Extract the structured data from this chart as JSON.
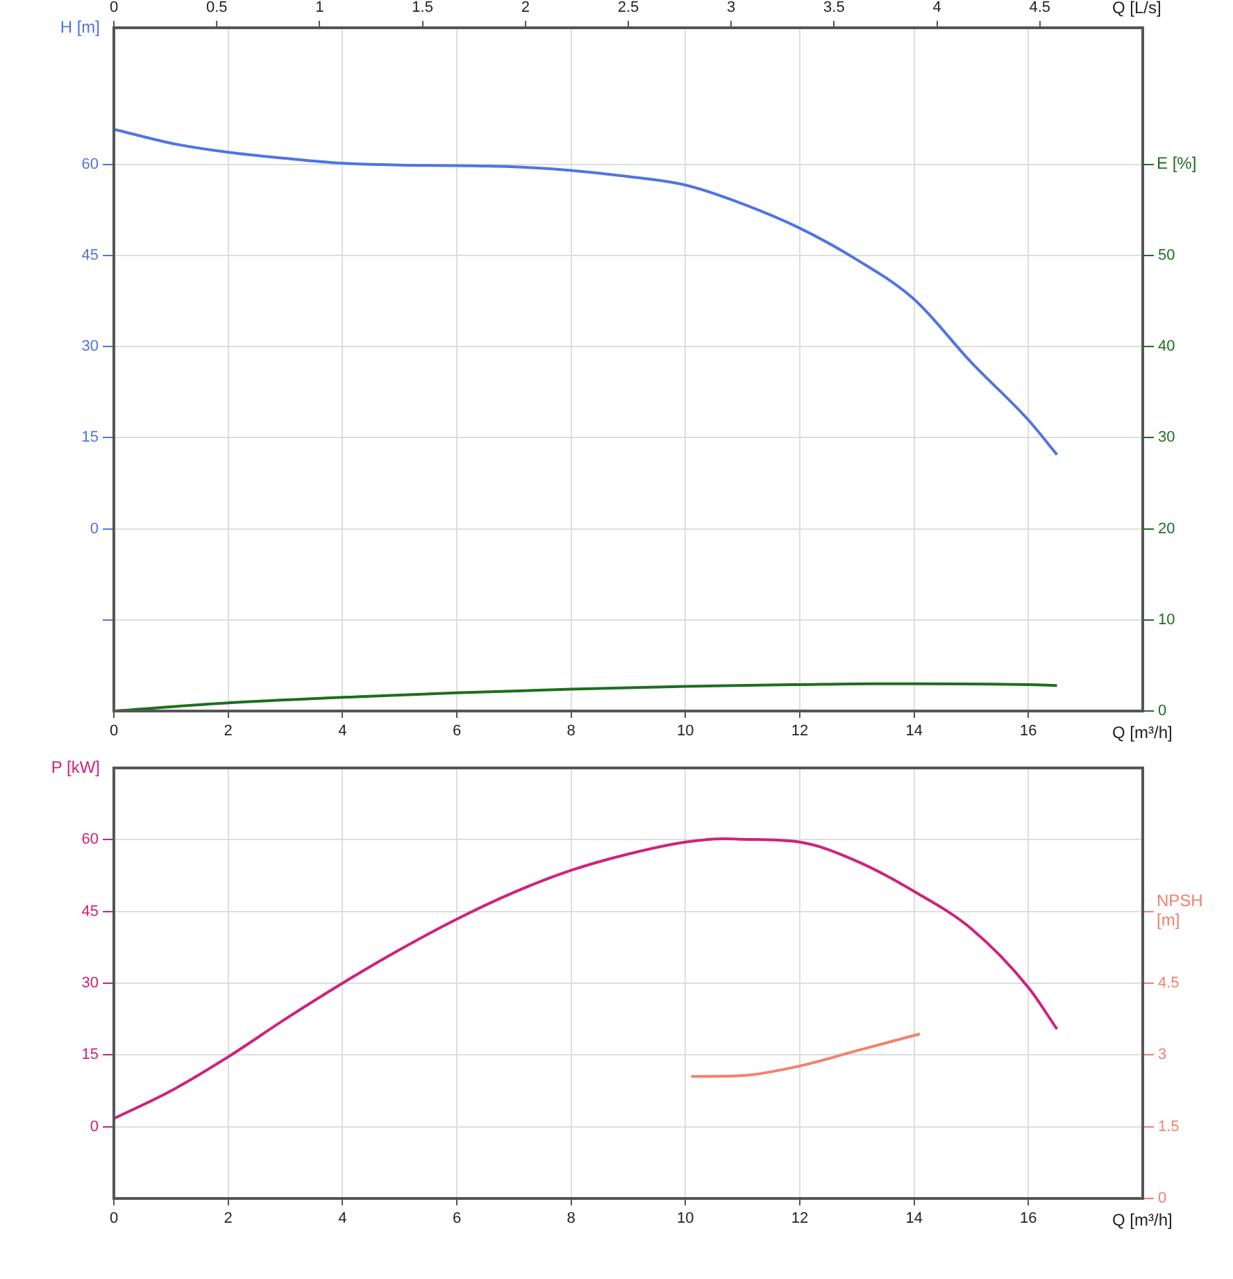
{
  "chart_data": [
    {
      "type": "line",
      "xlabel": "Q [m³/h]",
      "x2label": "Q [L/s]",
      "ylabel": "H [m]",
      "y2label": "E [%]",
      "xlim": [
        0,
        18
      ],
      "xticks": [
        0,
        2,
        4,
        6,
        8,
        10,
        12,
        14,
        16
      ],
      "x2lim": [
        0,
        5
      ],
      "x2ticks": [
        0,
        0.5,
        1,
        1.5,
        2,
        2.5,
        3,
        3.5,
        4,
        4.5
      ],
      "ylim": [
        -30,
        82.5
      ],
      "yticks": [
        {
          "value": -15,
          "label": null
        },
        0,
        15,
        30,
        45,
        60
      ],
      "y2lim": [
        0,
        75
      ],
      "y2ticks": [
        0,
        10,
        20,
        30,
        40,
        50,
        {
          "value": 60,
          "label": null
        }
      ],
      "grid": true,
      "legend": false,
      "marker": "none",
      "series": [
        {
          "color": "#4f74e3",
          "x": [
            0,
            1,
            2,
            3,
            4,
            5,
            6,
            7,
            8,
            9,
            10,
            11,
            12,
            13,
            14,
            15,
            16,
            16.5
          ],
          "values": [
            65.8,
            63.5,
            62,
            61,
            60.2,
            59.9,
            59.8,
            59.6,
            59,
            58,
            56.6,
            53.5,
            49.5,
            44.3,
            37.8,
            27.4,
            17.9,
            12.2
          ]
        },
        {
          "color": "#1e6e1e",
          "axis": "y2",
          "x": [
            0,
            2,
            4,
            6,
            8,
            10,
            12,
            13.3,
            14,
            16,
            16.5
          ],
          "values": [
            0,
            0.9,
            1.5,
            2.0,
            2.4,
            2.7,
            2.9,
            3.0,
            3.0,
            2.9,
            2.8
          ]
        }
      ]
    },
    {
      "type": "line",
      "xlabel": "Q [m³/h]",
      "ylabel": "P [kW]",
      "y2label": "NPSH [m]",
      "xlim": [
        0,
        18
      ],
      "xticks": [
        0,
        2,
        4,
        6,
        8,
        10,
        12,
        14,
        16
      ],
      "ylim": [
        -15,
        75
      ],
      "yticks": [
        0,
        15,
        30,
        45,
        60
      ],
      "y2lim": [
        0,
        9
      ],
      "y2ticks": [
        0,
        1.5,
        3,
        4.5,
        {
          "value": 6,
          "label": null
        }
      ],
      "grid": true,
      "legend": false,
      "marker": "none",
      "series": [
        {
          "color": "#d0217a",
          "x": [
            0,
            1,
            2,
            3,
            4,
            5,
            6,
            7,
            8,
            9,
            10,
            10.7,
            11,
            12,
            13,
            14,
            15,
            16,
            16.5
          ],
          "values": [
            1.7,
            7.5,
            14.6,
            22.5,
            30,
            37,
            43.4,
            49,
            53.6,
            57,
            59.5,
            60.2,
            60.1,
            59.5,
            55.5,
            49.2,
            41.4,
            29.1,
            20.4
          ]
        },
        {
          "color": "#f4806e",
          "axis": "y2",
          "x": [
            10.1,
            11,
            12,
            13,
            14.1
          ],
          "values": [
            2.55,
            2.57,
            2.77,
            3.09,
            3.44
          ]
        }
      ]
    }
  ]
}
